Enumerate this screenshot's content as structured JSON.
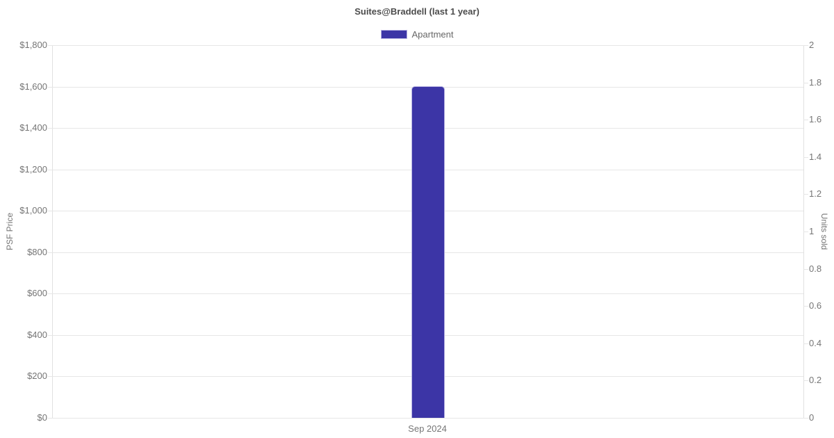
{
  "title": "Suites@Braddell (last 1 year)",
  "legend": {
    "items": [
      {
        "label": "Apartment",
        "color": "#3c35a6",
        "border_color": "#b7b3e2"
      }
    ]
  },
  "chart_data": {
    "type": "bar",
    "title": "Suites@Braddell (last 1 year)",
    "categories": [
      "Sep 2024"
    ],
    "series": [
      {
        "name": "Apartment",
        "yaxis": "left",
        "values": [
          1602
        ],
        "color": "#3c35a6",
        "border_color": "#b7b3e2"
      }
    ],
    "left_axis": {
      "title": "PSF Price",
      "min": 0,
      "max": 1800,
      "step": 200,
      "tick_labels": [
        "$0",
        "$200",
        "$400",
        "$600",
        "$800",
        "$1,000",
        "$1,200",
        "$1,400",
        "$1,600",
        "$1,800"
      ]
    },
    "right_axis": {
      "title": "Units sold",
      "min": 0,
      "max": 2,
      "step": 0.2,
      "tick_labels": [
        "0",
        "0.2",
        "0.4",
        "0.6",
        "0.8",
        "1",
        "1.2",
        "1.4",
        "1.6",
        "1.8",
        "2"
      ]
    },
    "grid": true,
    "legend_position": "top",
    "colors": {
      "grid": "#e6e6e6",
      "axis": "#e0e0e0",
      "tick_text": "#757575",
      "title_text": "#4c4c4c"
    }
  }
}
